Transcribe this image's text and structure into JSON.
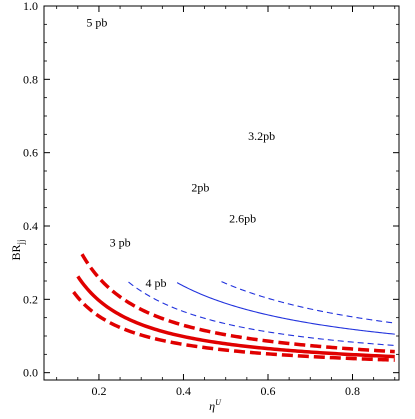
{
  "chart_data": {
    "type": "line",
    "xlabel": "η^U",
    "ylabel": "BR_jj",
    "xlim": [
      0.07,
      0.91
    ],
    "ylim": [
      -0.02,
      1.0
    ],
    "x_ticks": [
      "0.2",
      "0.4",
      "0.6",
      "0.8"
    ],
    "y_ticks": [
      "0.0",
      "0.2",
      "0.4",
      "0.6",
      "0.8",
      "1.0"
    ],
    "grid": false,
    "colors": {
      "red": "#e00000",
      "blue": "#2233dd"
    },
    "series": [
      {
        "label": "5 pb",
        "color": "red",
        "style": "dashed",
        "weight": "thick",
        "k": 0.0308,
        "x0": 0.14,
        "x_end": 0.9
      },
      {
        "label": "4 pb",
        "color": "red",
        "style": "solid",
        "weight": "thick",
        "k": 0.0394,
        "x0": 0.15,
        "x_end": 0.9
      },
      {
        "label": "3 pb",
        "color": "red",
        "style": "dashed",
        "weight": "thick",
        "k": 0.0517,
        "x0": 0.16,
        "x_end": 0.9
      },
      {
        "label": "2pb",
        "color": "blue",
        "style": "solid",
        "weight": "thin",
        "k": 0.0945,
        "x0": 0.385,
        "x_end": 0.9
      },
      {
        "label": "2.6pb",
        "color": "blue",
        "style": "dashed",
        "weight": "thin",
        "k": 0.0667,
        "x0": 0.27,
        "x_end": 0.9
      },
      {
        "label": "3.2pb",
        "color": "blue",
        "style": "dashed",
        "weight": "thin",
        "k": 0.1217,
        "x0": 0.49,
        "x_end": 0.9
      }
    ],
    "labels": [
      {
        "text": "5 pb",
        "x": 0.195,
        "y": 0.955
      },
      {
        "text": "3 pb",
        "x": 0.25,
        "y": 0.355
      },
      {
        "text": "4 pb",
        "x": 0.335,
        "y": 0.245
      },
      {
        "text": "2pb",
        "x": 0.44,
        "y": 0.505
      },
      {
        "text": "2.6pb",
        "x": 0.54,
        "y": 0.42
      },
      {
        "text": "3.2pb",
        "x": 0.585,
        "y": 0.645
      }
    ]
  }
}
